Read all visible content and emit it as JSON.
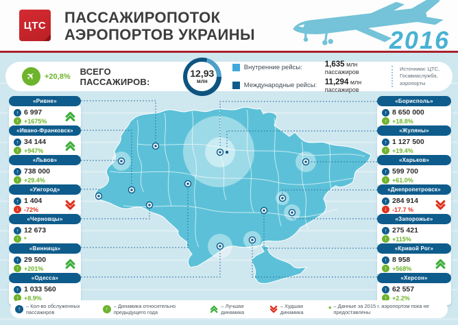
{
  "header": {
    "logo_text": "ЦТС",
    "title_line1": "ПАССАЖИРОПОТОК",
    "title_line2": "АЭРОПОРТОВ УКРАИНЫ",
    "year": "2016"
  },
  "stats": {
    "growth": "+20,8%",
    "total_label": "ВСЕГО ПАССАЖИРОВ:",
    "total_value": "12,93",
    "total_unit": "млн",
    "domestic_label": "Внутренние рейсы:",
    "domestic_value": "1,635",
    "domestic_unit": " млн пассажиров",
    "international_label": "Международные рейсы:",
    "international_value": "11,294",
    "international_unit": " млн пассажиров",
    "sources": "Источники: ЦТС, Госавиаслужба, аэропорты"
  },
  "airports_left": [
    {
      "name": "«Ривне»",
      "passengers": "6 997",
      "change": "+1675%",
      "trend": "best",
      "negative": false
    },
    {
      "name": "«Ивано-Франковск»",
      "passengers": "34 144",
      "change": "+947%",
      "trend": "best",
      "negative": false
    },
    {
      "name": "«Львов»",
      "passengers": "738 000",
      "change": "+29.4%",
      "trend": null,
      "negative": false
    },
    {
      "name": "«Ужгород»",
      "passengers": "1 404",
      "change": "-72%",
      "trend": "worst",
      "negative": true
    },
    {
      "name": "«Черновцы»",
      "passengers": "12 673",
      "change": "*",
      "trend": null,
      "negative": false
    },
    {
      "name": "«Винница»",
      "passengers": "29 500",
      "change": "+201%",
      "trend": "best",
      "negative": false
    },
    {
      "name": "«Одесса»",
      "passengers": "1 033 560",
      "change": "+8.9%",
      "trend": null,
      "negative": false
    }
  ],
  "airports_right": [
    {
      "name": "«Борисполь»",
      "passengers": "8 650 000",
      "change": "+18.8%",
      "trend": null,
      "negative": false
    },
    {
      "name": "«Жуляны»",
      "passengers": "1 127 500",
      "change": "+19.4%",
      "trend": null,
      "negative": false
    },
    {
      "name": "«Харьков»",
      "passengers": "599 700",
      "change": "+61.0%",
      "trend": null,
      "negative": false
    },
    {
      "name": "«Днепропетровск»",
      "passengers": "284 914",
      "change": "-17.7 %",
      "trend": "worst",
      "negative": true
    },
    {
      "name": "«Запорожье»",
      "passengers": "275 421",
      "change": "+115%",
      "trend": null,
      "negative": false
    },
    {
      "name": "«Кривой Рог»",
      "passengers": "8 958",
      "change": "+568%",
      "trend": "best",
      "negative": false
    },
    {
      "name": "«Херсон»",
      "passengers": "62 557",
      "change": "+2.2%",
      "trend": null,
      "negative": false
    }
  ],
  "footer_legend": {
    "items": [
      {
        "icon": "passengers-icon",
        "label": "– Кол-во обслуженных пассажиров"
      },
      {
        "icon": "growth-icon",
        "label": "– Динамика относительно предыдущего года"
      },
      {
        "icon": "best-dynamics-icon",
        "label": "– Лучшая динамика"
      },
      {
        "icon": "worst-dynamics-icon",
        "label": "– Худшая динамика"
      },
      {
        "icon": "asterisk",
        "symbol": "*",
        "label": "– Данные за 2015 г. аэропортом пока не предоставлены"
      }
    ]
  },
  "colors": {
    "background": "#cfe7ef",
    "map_fill": "#5cc1d8",
    "dark_blue": "#0e5c8c",
    "light_blue_square": "#3fa9dc",
    "green": "#6db32c",
    "red": "#e0321f",
    "accent_red_rule": "#a8202a",
    "year_blue": "#49b2d4"
  }
}
